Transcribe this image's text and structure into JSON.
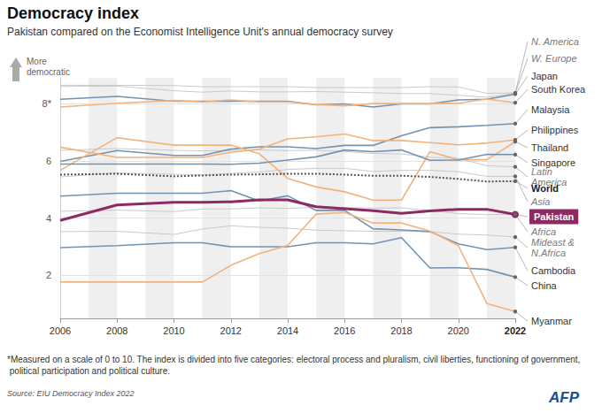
{
  "chart_data": {
    "type": "line",
    "title": "Democracy index",
    "subtitle": "Pakistan compared on the Economist Intelligence Unit's annual democracy survey",
    "y_label": "More democratic",
    "footnote": "*Measured on a scale of 0 to 10. The index is divided into five categories: electoral process and pluralism, civil liberties, functioning of government, political participation and political culture.",
    "source": "Source: EIU Democracy Index 2022",
    "credit": "AFP",
    "xlim": [
      2006,
      2022
    ],
    "xticks": [
      2006,
      2008,
      2010,
      2012,
      2014,
      2016,
      2018,
      2020,
      2022
    ],
    "ylim": [
      0.5,
      8.9
    ],
    "yticks": [
      2,
      4,
      6,
      {
        "value": 8,
        "label": "8*"
      }
    ],
    "grid": true,
    "x": [
      2006,
      2008,
      2010,
      2011,
      2012,
      2013,
      2014,
      2015,
      2016,
      2017,
      2018,
      2019,
      2020,
      2021,
      2022
    ],
    "series": [
      {
        "name": "N. America",
        "color": "#c4c4c4",
        "line_style": "thin",
        "values": [
          8.64,
          8.64,
          8.63,
          8.59,
          8.59,
          8.59,
          8.59,
          8.56,
          8.56,
          8.56,
          8.56,
          8.59,
          8.58,
          8.36,
          8.37
        ]
      },
      {
        "name": "W. Europe",
        "color": "#c4c4c4",
        "line_style": "thin",
        "values": [
          8.6,
          8.61,
          8.45,
          8.4,
          8.44,
          8.41,
          8.41,
          8.42,
          8.4,
          8.38,
          8.35,
          8.35,
          8.29,
          8.22,
          8.36
        ]
      },
      {
        "name": "Japan",
        "color": "#7393b0",
        "line_style": "solid",
        "values": [
          8.15,
          8.25,
          8.08,
          8.08,
          8.08,
          8.08,
          8.08,
          7.96,
          7.99,
          7.88,
          7.99,
          7.99,
          8.13,
          8.15,
          8.33
        ]
      },
      {
        "name": "South Korea",
        "color": "#f3b27a",
        "line_style": "solid",
        "values": [
          7.88,
          8.01,
          8.11,
          8.06,
          8.13,
          8.06,
          8.06,
          7.97,
          7.92,
          8.0,
          8.0,
          8.0,
          8.01,
          8.16,
          8.03
        ]
      },
      {
        "name": "Malaysia",
        "color": "#7393b0",
        "line_style": "solid",
        "values": [
          5.98,
          6.36,
          6.19,
          6.19,
          6.41,
          6.49,
          6.49,
          6.43,
          6.54,
          6.54,
          6.88,
          7.16,
          7.19,
          7.24,
          7.3
        ]
      },
      {
        "name": "Philippines",
        "color": "#f3b27a",
        "line_style": "solid",
        "values": [
          6.48,
          6.12,
          6.12,
          6.12,
          6.3,
          6.41,
          6.77,
          6.84,
          6.94,
          6.71,
          6.71,
          6.64,
          6.56,
          6.62,
          6.73
        ]
      },
      {
        "name": "Thailand",
        "color": "#f3b27a",
        "line_style": "solid",
        "values": [
          5.67,
          6.81,
          6.55,
          6.55,
          6.55,
          6.25,
          5.39,
          5.09,
          4.92,
          4.63,
          4.63,
          6.32,
          6.04,
          6.04,
          6.67
        ]
      },
      {
        "name": "Singapore",
        "color": "#7393b0",
        "line_style": "solid",
        "values": [
          5.89,
          5.89,
          5.89,
          5.89,
          5.88,
          5.92,
          6.03,
          6.14,
          6.38,
          6.32,
          6.38,
          6.02,
          6.03,
          6.23,
          6.22
        ]
      },
      {
        "name": "Latin America",
        "color": "#c4c4c4",
        "line_style": "thin",
        "values": [
          6.37,
          6.43,
          6.37,
          6.35,
          6.36,
          6.38,
          6.36,
          6.37,
          6.33,
          6.26,
          6.24,
          6.13,
          6.09,
          5.83,
          5.79
        ]
      },
      {
        "name": "World",
        "color": "#555555",
        "line_style": "dotted",
        "values": [
          5.52,
          5.55,
          5.46,
          5.49,
          5.52,
          5.53,
          5.55,
          5.55,
          5.52,
          5.48,
          5.48,
          5.44,
          5.37,
          5.28,
          5.29
        ]
      },
      {
        "name": "Asia",
        "color": "#c4c4c4",
        "line_style": "thin",
        "values": [
          5.44,
          5.58,
          5.53,
          5.51,
          5.56,
          5.61,
          5.7,
          5.74,
          5.74,
          5.63,
          5.67,
          5.67,
          5.62,
          5.46,
          5.46
        ]
      },
      {
        "name": "Pakistan",
        "color": "#8e2a62",
        "line_style": "thick",
        "values": [
          3.92,
          4.46,
          4.55,
          4.55,
          4.57,
          4.64,
          4.64,
          4.4,
          4.33,
          4.26,
          4.17,
          4.25,
          4.31,
          4.31,
          4.13
        ]
      },
      {
        "name": "Africa",
        "color": "#c4c4c4",
        "line_style": "thin",
        "values": [
          4.24,
          4.28,
          4.23,
          4.32,
          4.32,
          4.36,
          4.34,
          4.38,
          4.37,
          4.35,
          4.36,
          4.26,
          4.16,
          4.12,
          4.14
        ]
      },
      {
        "name": "Mideast & N.Africa",
        "color": "#c4c4c4",
        "line_style": "thin",
        "values": [
          3.53,
          3.54,
          3.43,
          3.62,
          3.73,
          3.68,
          3.65,
          3.58,
          3.56,
          3.54,
          3.54,
          3.53,
          3.44,
          3.41,
          3.34
        ]
      },
      {
        "name": "Cambodia",
        "color": "#7393b0",
        "line_style": "solid",
        "values": [
          4.77,
          4.87,
          4.87,
          4.87,
          4.96,
          4.6,
          4.78,
          4.27,
          4.27,
          3.63,
          3.59,
          3.53,
          3.1,
          2.9,
          2.98
        ]
      },
      {
        "name": "China",
        "color": "#7393b0",
        "line_style": "solid",
        "values": [
          2.97,
          3.04,
          3.14,
          3.14,
          3.0,
          3.0,
          3.0,
          3.14,
          3.14,
          3.1,
          3.32,
          2.26,
          2.27,
          2.21,
          1.94
        ]
      },
      {
        "name": "Myanmar",
        "color": "#f3b27a",
        "line_style": "solid",
        "values": [
          1.77,
          1.77,
          1.77,
          1.77,
          2.35,
          2.76,
          3.05,
          4.14,
          4.2,
          3.83,
          3.83,
          3.55,
          3.04,
          1.02,
          0.74
        ]
      }
    ]
  }
}
